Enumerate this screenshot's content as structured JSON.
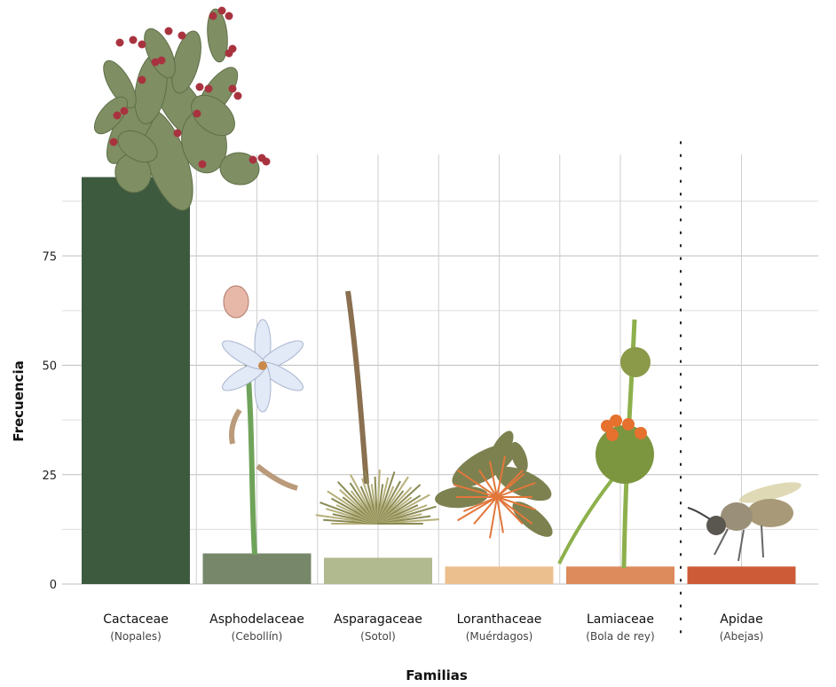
{
  "chart_data": {
    "type": "bar",
    "categories": [
      "Cactaceae",
      "Asphodelaceae",
      "Asparagaceae",
      "Loranthaceae",
      "Lamiaceae",
      "Apidae"
    ],
    "subcategories": [
      "(Nopales)",
      "(Cebollín)",
      "(Sotol)",
      "(Muérdagos)",
      "(Bola de rey)",
      "(Abejas)"
    ],
    "values": [
      93,
      7,
      6,
      4,
      4,
      4
    ],
    "colors": [
      "#3d5a3f",
      "#77876a",
      "#b1b98f",
      "#ecbf8e",
      "#dd8a5c",
      "#ce5b38"
    ],
    "xlabel": "Familias",
    "ylabel": "Frecuencia",
    "ylim": [
      0,
      95
    ],
    "yticks": [
      0,
      25,
      50,
      75
    ],
    "grid": true
  }
}
